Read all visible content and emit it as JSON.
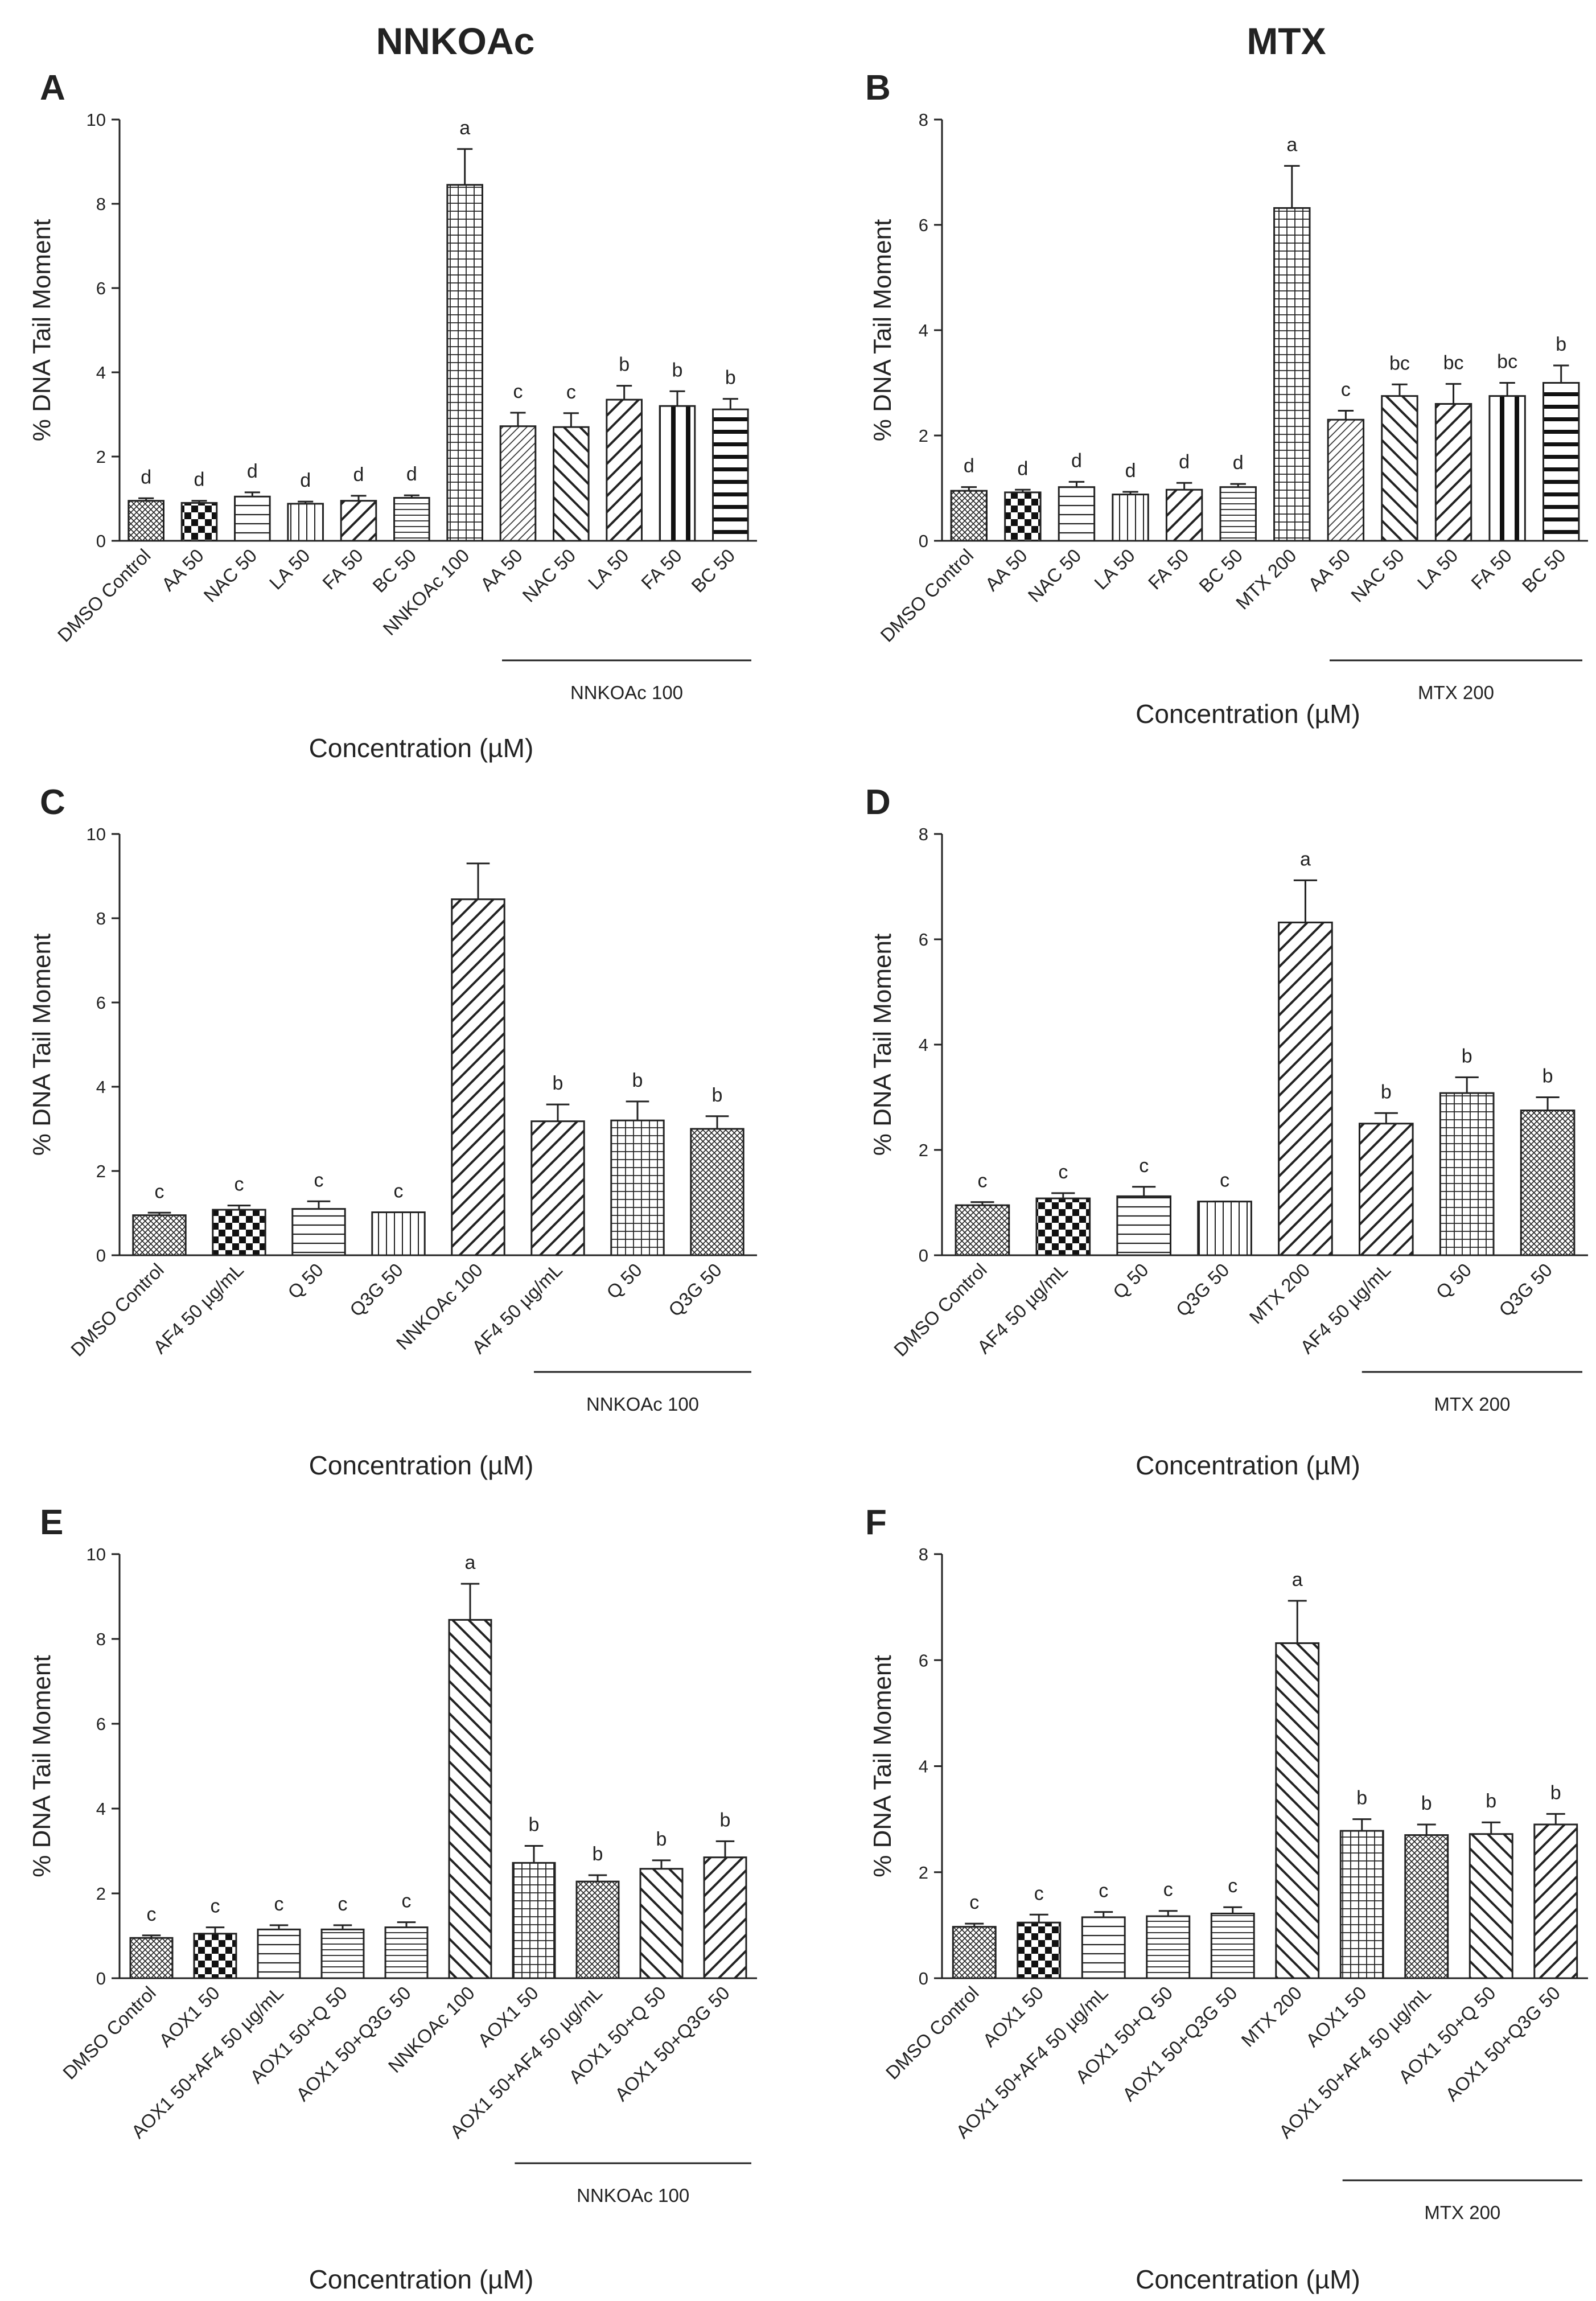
{
  "column_titles": [
    "NNKOAc",
    "MTX"
  ],
  "chart_data": [
    {
      "panel": "A",
      "type": "bar",
      "ylabel": "% DNA Tail Moment",
      "xlabel": "Concentration (µM)",
      "ylim": [
        0,
        10
      ],
      "yticks": [
        "0",
        "2",
        "4",
        "6",
        "8",
        "10"
      ],
      "categories": [
        "DMSO Control",
        "AA 50",
        "NAC 50",
        "LA 50",
        "FA 50",
        "BC 50",
        "NNKOAc 100",
        "AA 50",
        "NAC 50",
        "LA 50",
        "FA 50",
        "BC 50"
      ],
      "values": [
        0.95,
        0.9,
        1.05,
        0.88,
        0.95,
        1.02,
        8.45,
        2.72,
        2.7,
        3.35,
        3.2,
        3.12
      ],
      "errors": [
        0.06,
        0.05,
        0.1,
        0.05,
        0.12,
        0.06,
        0.85,
        0.32,
        0.33,
        0.33,
        0.35,
        0.25
      ],
      "letters": [
        "d",
        "d",
        "d",
        "d",
        "d",
        "d",
        "a",
        "c",
        "c",
        "b",
        "b",
        "b"
      ],
      "patterns": [
        "crossfine",
        "checker",
        "hlines",
        "vlines",
        "diag",
        "hlinesfine",
        "grid",
        "diagfine",
        "back",
        "diag",
        "vbars",
        "hbars"
      ],
      "group_label": "NNKOAc 100"
    },
    {
      "panel": "B",
      "type": "bar",
      "ylabel": "% DNA Tail Moment",
      "xlabel": "Concentration (µM)",
      "ylim": [
        0,
        8
      ],
      "yticks": [
        "0",
        "2",
        "4",
        "6",
        "8"
      ],
      "categories": [
        "DMSO Control",
        "AA 50",
        "NAC 50",
        "LA 50",
        "FA 50",
        "BC 50",
        "MTX 200",
        "AA 50",
        "NAC 50",
        "LA 50",
        "FA 50",
        "BC 50"
      ],
      "values": [
        0.95,
        0.92,
        1.02,
        0.88,
        0.97,
        1.02,
        6.32,
        2.3,
        2.75,
        2.6,
        2.75,
        3.0
      ],
      "errors": [
        0.07,
        0.05,
        0.1,
        0.05,
        0.13,
        0.06,
        0.8,
        0.17,
        0.22,
        0.38,
        0.25,
        0.33
      ],
      "letters": [
        "d",
        "d",
        "d",
        "d",
        "d",
        "d",
        "a",
        "c",
        "bc",
        "bc",
        "bc",
        "b"
      ],
      "patterns": [
        "crossfine",
        "checker",
        "hlines",
        "vlines",
        "diag",
        "hlinesfine",
        "grid",
        "diagfine",
        "back",
        "diag",
        "vbars",
        "hbars"
      ],
      "group_label": "MTX 200"
    },
    {
      "panel": "C",
      "type": "bar",
      "ylabel": "% DNA Tail Moment",
      "xlabel": "Concentration (µM)",
      "ylim": [
        0,
        10
      ],
      "yticks": [
        "0",
        "2",
        "4",
        "6",
        "8",
        "10"
      ],
      "categories": [
        "DMSO Control",
        "AF4 50 µg/mL",
        "Q 50",
        "Q3G 50",
        "NNKOAc 100",
        "AF4 50 µg/mL",
        "Q 50",
        "Q3G 50"
      ],
      "values": [
        0.95,
        1.08,
        1.1,
        1.02,
        8.45,
        3.18,
        3.2,
        3.0
      ],
      "errors": [
        0.06,
        0.1,
        0.18,
        0.0,
        0.85,
        0.4,
        0.45,
        0.3
      ],
      "letters": [
        "c",
        "c",
        "c",
        "c",
        "",
        "b",
        "b",
        "b"
      ],
      "patterns": [
        "crossfine",
        "checker",
        "hlines",
        "vlines",
        "diag",
        "diag",
        "grid",
        "crossfine"
      ],
      "group_label": "NNKOAc 100"
    },
    {
      "panel": "D",
      "type": "bar",
      "ylabel": "% DNA Tail Moment",
      "xlabel": "Concentration (µM)",
      "ylim": [
        0,
        8
      ],
      "yticks": [
        "0",
        "2",
        "4",
        "6",
        "8"
      ],
      "categories": [
        "DMSO Control",
        "AF4 50 µg/mL",
        "Q 50",
        "Q3G 50",
        "MTX 200",
        "AF4 50 µg/mL",
        "Q 50",
        "Q3G 50"
      ],
      "values": [
        0.95,
        1.08,
        1.12,
        1.02,
        6.32,
        2.5,
        3.08,
        2.75
      ],
      "errors": [
        0.06,
        0.1,
        0.18,
        0.0,
        0.8,
        0.2,
        0.3,
        0.25
      ],
      "letters": [
        "c",
        "c",
        "c",
        "c",
        "a",
        "b",
        "b",
        "b"
      ],
      "patterns": [
        "crossfine",
        "checker",
        "hlines",
        "vlines",
        "diag",
        "diag",
        "grid",
        "crossfine"
      ],
      "group_label": "MTX 200"
    },
    {
      "panel": "E",
      "type": "bar",
      "ylabel": "% DNA Tail Moment",
      "xlabel": "Concentration (µM)",
      "ylim": [
        0,
        10
      ],
      "yticks": [
        "0",
        "2",
        "4",
        "6",
        "8",
        "10"
      ],
      "categories": [
        "DMSO Control",
        "AOX1 50",
        "AOX1 50+AF4 50 µg/mL",
        "AOX1 50+Q 50",
        "AOX1 50+Q3G 50",
        "NNKOAc 100",
        "AOX1 50",
        "AOX1 50+AF4 50 µg/mL",
        "AOX1 50+Q 50",
        "AOX1 50+Q3G 50"
      ],
      "values": [
        0.95,
        1.05,
        1.15,
        1.15,
        1.2,
        8.45,
        2.72,
        2.28,
        2.58,
        2.85
      ],
      "errors": [
        0.06,
        0.15,
        0.1,
        0.1,
        0.12,
        0.85,
        0.4,
        0.15,
        0.2,
        0.38
      ],
      "letters": [
        "c",
        "c",
        "c",
        "c",
        "c",
        "a",
        "b",
        "b",
        "b",
        "b"
      ],
      "patterns": [
        "crossfine",
        "checker",
        "hlines",
        "hlinesfine",
        "hlinesfine",
        "back",
        "grid",
        "crossfine",
        "back",
        "diag"
      ],
      "group_label": "NNKOAc 100"
    },
    {
      "panel": "F",
      "type": "bar",
      "ylabel": "% DNA Tail Moment",
      "xlabel": "Concentration (µM)",
      "ylim": [
        0,
        8
      ],
      "yticks": [
        "0",
        "2",
        "4",
        "6",
        "8"
      ],
      "categories": [
        "DMSO Control",
        "AOX1 50",
        "AOX1 50+AF4 50 µg/mL",
        "AOX1 50+Q 50",
        "AOX1 50+Q3G 50",
        "MTX 200",
        "AOX1 50",
        "AOX1 50+AF4 50 µg/mL",
        "AOX1 50+Q 50",
        "AOX1 50+Q3G 50"
      ],
      "values": [
        0.97,
        1.05,
        1.15,
        1.17,
        1.22,
        6.32,
        2.78,
        2.7,
        2.72,
        2.9
      ],
      "errors": [
        0.06,
        0.15,
        0.1,
        0.1,
        0.12,
        0.8,
        0.22,
        0.2,
        0.22,
        0.2
      ],
      "letters": [
        "c",
        "c",
        "c",
        "c",
        "c",
        "a",
        "b",
        "b",
        "b",
        "b"
      ],
      "patterns": [
        "crossfine",
        "checker",
        "hlines",
        "hlinesfine",
        "hlinesfine",
        "back",
        "grid",
        "crossfine",
        "back",
        "diag"
      ],
      "group_label": "MTX 200"
    }
  ]
}
